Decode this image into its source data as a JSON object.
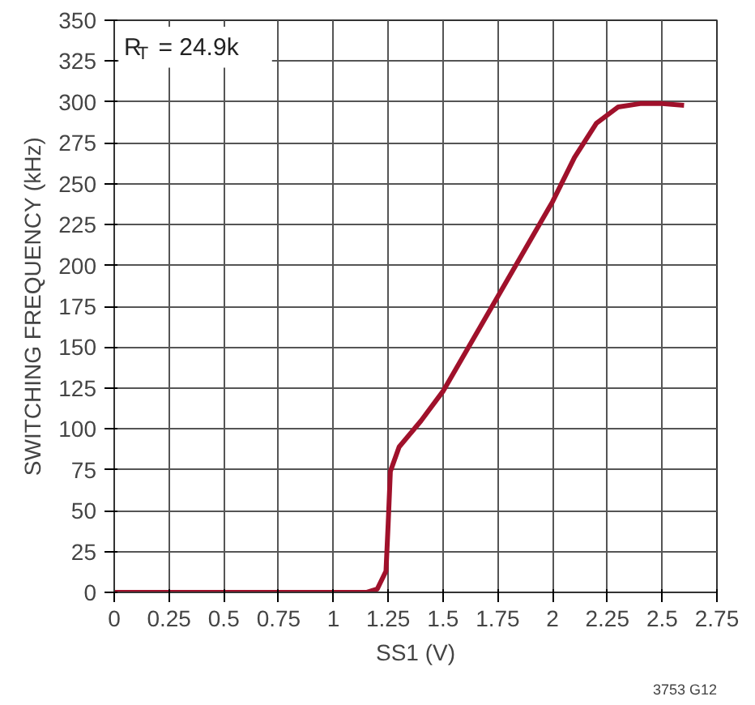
{
  "chart_data": {
    "type": "line",
    "xlabel": "SS1 (V)",
    "ylabel": "SWITCHING FREQUENCY (kHz)",
    "x": [
      0,
      0.5,
      1,
      1.15,
      1.2,
      1.24,
      1.25,
      1.26,
      1.3,
      1.4,
      1.5,
      1.75,
      2,
      2.1,
      2.2,
      2.3,
      2.4,
      2.5,
      2.6
    ],
    "series": [
      {
        "color": "#a0112b",
        "values": [
          0,
          0,
          0,
          0,
          2,
          13,
          42,
          74,
          89,
          105,
          123,
          181,
          239,
          266,
          287,
          297,
          299,
          299,
          298
        ]
      }
    ],
    "xlim": [
      0,
      2.75
    ],
    "xticks": [
      0,
      0.25,
      0.5,
      0.75,
      1,
      1.25,
      1.5,
      1.75,
      2,
      2.25,
      2.5,
      2.75
    ],
    "ylim": [
      0,
      350
    ],
    "yticks": [
      0,
      25,
      50,
      75,
      100,
      125,
      150,
      175,
      200,
      225,
      250,
      275,
      300,
      325,
      350
    ],
    "grid": true,
    "annotations": [
      "R$_{T}$ = 24.9k",
      "3753 G12"
    ]
  }
}
